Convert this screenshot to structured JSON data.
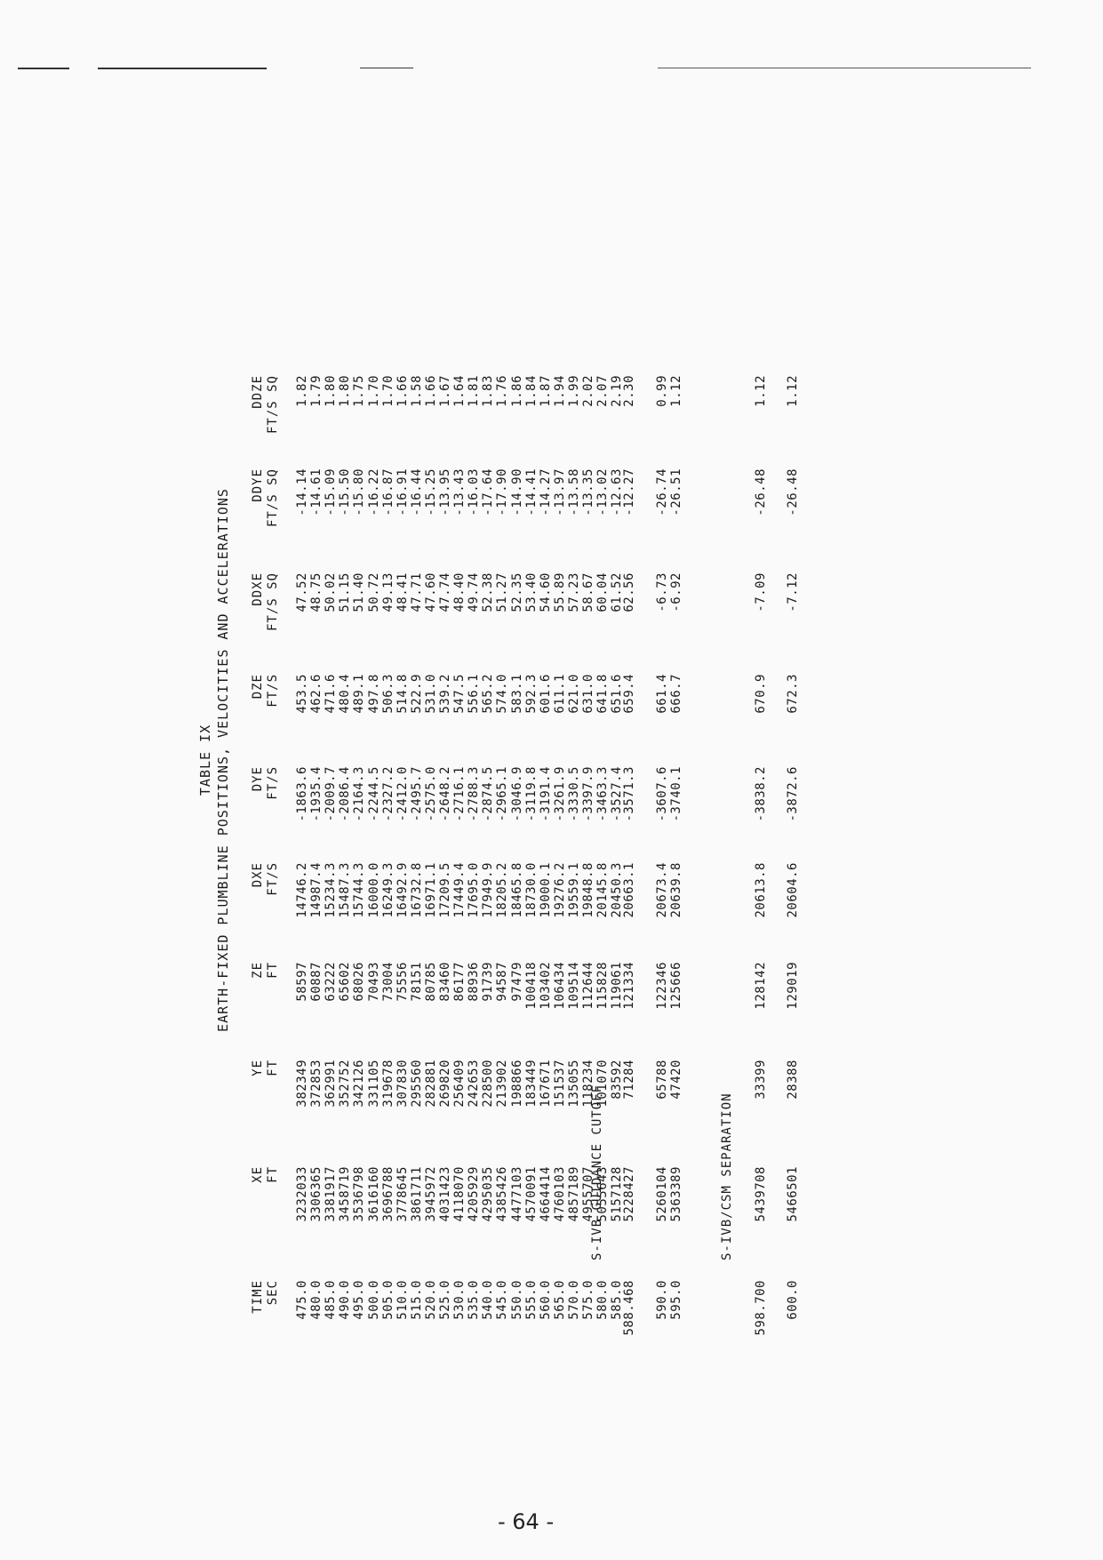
{
  "page": {
    "title": "TABLE IX",
    "subtitle": "EARTH-FIXED PLUMBLINE POSITIONS, VELOCITIES AND ACCELERATIONS",
    "page_number": "- 64 -"
  },
  "table": {
    "columns": [
      {
        "key": "time",
        "name": "TIME",
        "unit": "SEC"
      },
      {
        "key": "xe",
        "name": "XE",
        "unit": "FT"
      },
      {
        "key": "ye",
        "name": "YE",
        "unit": "FT"
      },
      {
        "key": "ze",
        "name": "ZE",
        "unit": "FT"
      },
      {
        "key": "dxe",
        "name": "DXE",
        "unit": "FT/S"
      },
      {
        "key": "dye",
        "name": "DYE",
        "unit": "FT/S"
      },
      {
        "key": "dze",
        "name": "DZE",
        "unit": "FT/S"
      },
      {
        "key": "ddxe",
        "name": "DDXE",
        "unit": "FT/S SQ"
      },
      {
        "key": "ddye",
        "name": "DDYE",
        "unit": "FT/S SQ"
      },
      {
        "key": "ddze",
        "name": "DDZE",
        "unit": "FT/S SQ"
      }
    ],
    "rows": [
      [
        "475.0",
        "3232033",
        "382349",
        "58597",
        "14746.2",
        "-1863.6",
        "453.5",
        "47.52",
        "-14.14",
        "1.82"
      ],
      [
        "480.0",
        "3306365",
        "372853",
        "60887",
        "14987.4",
        "-1935.4",
        "462.6",
        "48.75",
        "-14.61",
        "1.79"
      ],
      [
        "485.0",
        "3381917",
        "362991",
        "63222",
        "15234.3",
        "-2009.7",
        "471.6",
        "50.02",
        "-15.09",
        "1.80"
      ],
      [
        "490.0",
        "3458719",
        "352752",
        "65602",
        "15487.3",
        "-2086.4",
        "480.4",
        "51.15",
        "-15.50",
        "1.80"
      ],
      [
        "495.0",
        "3536798",
        "342126",
        "68026",
        "15744.3",
        "-2164.3",
        "489.1",
        "51.40",
        "-15.80",
        "1.75"
      ],
      [
        "500.0",
        "3616160",
        "331105",
        "70493",
        "16000.0",
        "-2244.5",
        "497.8",
        "50.72",
        "-16.22",
        "1.70"
      ],
      [
        "505.0",
        "3696788",
        "319678",
        "73004",
        "16249.3",
        "-2327.2",
        "506.3",
        "49.13",
        "-16.87",
        "1.70"
      ],
      [
        "510.0",
        "3778645",
        "307830",
        "75556",
        "16492.9",
        "-2412.0",
        "514.8",
        "48.41",
        "-16.91",
        "1.66"
      ],
      [
        "515.0",
        "3861711",
        "295560",
        "78151",
        "16732.8",
        "-2495.7",
        "522.9",
        "47.71",
        "-16.44",
        "1.58"
      ],
      [
        "520.0",
        "3945972",
        "282881",
        "80785",
        "16971.1",
        "-2575.0",
        "531.0",
        "47.60",
        "-15.25",
        "1.66"
      ],
      [
        "525.0",
        "4031423",
        "269820",
        "83460",
        "17209.5",
        "-2648.2",
        "539.2",
        "47.74",
        "-13.95",
        "1.67"
      ],
      [
        "530.0",
        "4118070",
        "256409",
        "86177",
        "17449.4",
        "-2716.1",
        "547.5",
        "48.40",
        "-13.43",
        "1.64"
      ],
      [
        "535.0",
        "4205929",
        "242653",
        "88936",
        "17695.0",
        "-2788.3",
        "556.1",
        "49.74",
        "-16.03",
        "1.81"
      ],
      [
        "540.0",
        "4295035",
        "228500",
        "91739",
        "17949.9",
        "-2874.5",
        "565.2",
        "52.38",
        "-17.64",
        "1.83"
      ],
      [
        "545.0",
        "4385426",
        "213902",
        "94587",
        "18205.2",
        "-2965.1",
        "574.0",
        "51.27",
        "-17.90",
        "1.76"
      ],
      [
        "550.0",
        "4477103",
        "198866",
        "97479",
        "18465.8",
        "-3046.9",
        "583.1",
        "52.35",
        "-14.90",
        "1.86"
      ],
      [
        "555.0",
        "4570091",
        "183449",
        "100418",
        "18730.0",
        "-3119.8",
        "592.3",
        "53.40",
        "-14.41",
        "1.84"
      ],
      [
        "560.0",
        "4664414",
        "167671",
        "103402",
        "19000.1",
        "-3191.4",
        "601.6",
        "54.60",
        "-14.27",
        "1.87"
      ],
      [
        "565.0",
        "4760103",
        "151537",
        "106434",
        "19276.2",
        "-3261.9",
        "611.1",
        "55.89",
        "-13.97",
        "1.94"
      ],
      [
        "570.0",
        "4857189",
        "135055",
        "109514",
        "19559.1",
        "-3330.5",
        "621.0",
        "57.23",
        "-13.58",
        "1.99"
      ],
      [
        "575.0",
        "4955707",
        "118234",
        "112644",
        "19848.8",
        "-3397.9",
        "631.0",
        "58.67",
        "-13.35",
        "2.02"
      ],
      [
        "580.0",
        "5055643",
        "101070",
        "115828",
        "20145.8",
        "-3463.3",
        "641.8",
        "60.04",
        "-13.02",
        "2.07"
      ],
      [
        "585.0",
        "5157128",
        "83592",
        "119061",
        "20450.3",
        "-3527.4",
        "651.6",
        "61.52",
        "-12.63",
        "2.19"
      ]
    ],
    "sections": [
      {
        "label": "S-IVB GUIDANCE CUTOFF",
        "rows": [
          [
            "588.468",
            "5228427",
            "71284",
            "121334",
            "20663.1",
            "-3571.3",
            "659.4",
            "62.56",
            "-12.27",
            "2.30"
          ],
          [
            "590.0",
            "5260104",
            "65788",
            "122346",
            "20673.4",
            "-3607.6",
            "661.4",
            "-6.73",
            "-26.74",
            "0.99"
          ],
          [
            "595.0",
            "5363389",
            "47420",
            "125666",
            "20639.8",
            "-3740.1",
            "666.7",
            "-6.92",
            "-26.51",
            "1.12"
          ]
        ]
      },
      {
        "label": "S-IVB/CSM SEPARATION",
        "rows": [
          [
            "598.700",
            "5439708",
            "33399",
            "128142",
            "20613.8",
            "-3838.2",
            "670.9",
            "-7.09",
            "-26.48",
            "1.12"
          ],
          [
            "600.0",
            "5466501",
            "28388",
            "129019",
            "20604.6",
            "-3872.6",
            "672.3",
            "-7.12",
            "-26.48",
            "1.12"
          ]
        ]
      }
    ]
  }
}
